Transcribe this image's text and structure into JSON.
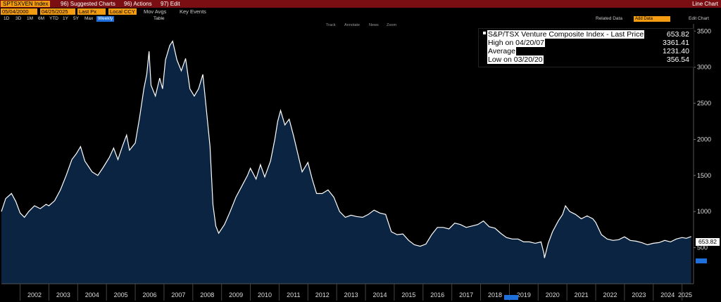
{
  "header": {
    "ticker": "SPTSXVEN Index",
    "suggested": "96) Suggested Charts",
    "actions": "96) Actions",
    "edit": "97) Edit",
    "chart_type": "Line Chart"
  },
  "controls": {
    "start_date": "05/04/2000",
    "end_date": "04/25/2025",
    "field": "Last Px",
    "currency": "Local CCY",
    "mov_avgs": "Mov Avgs",
    "key_events": "Key Events"
  },
  "ranges": [
    "1D",
    "3D",
    "1M",
    "6M",
    "YTD",
    "1Y",
    "5Y",
    "Max"
  ],
  "period": "Weekly",
  "table_label": "Table",
  "right_tools": {
    "related": "Related Data",
    "add": "Add Data",
    "edit_chart": "Edit Chart"
  },
  "chart_tools": [
    "Track",
    "Annotate",
    "News",
    "Zoom"
  ],
  "legend": {
    "title": "S&P/TSX Venture Composite Index - Last Price",
    "title_value": "653.82",
    "high_label": "High on 04/20/07",
    "high_value": "3361.41",
    "avg_label": "Average",
    "avg_value": "1231.40",
    "low_label": "Low on 03/20/20",
    "low_value": "356.54"
  },
  "last_price_tag": "653.82",
  "chart_data": {
    "type": "area",
    "title": "S&P/TSX Venture Composite Index - Last Price",
    "x_ticks": [
      "2002",
      "2003",
      "2004",
      "2005",
      "2006",
      "2007",
      "2008",
      "2009",
      "2010",
      "2011",
      "2012",
      "2013",
      "2014",
      "2015",
      "2016",
      "2017",
      "2018",
      "2019",
      "2020",
      "2021",
      "2022",
      "2023",
      "2024",
      "2025"
    ],
    "y_ticks": [
      500,
      1000,
      1500,
      2000,
      2500,
      3000,
      3500
    ],
    "ylim": [
      0,
      3600
    ],
    "xlim": [
      2001.35,
      2025.4
    ],
    "colors": {
      "line": "#ffffff",
      "fill": "#0b2442"
    },
    "points": [
      [
        2001.35,
        1000
      ],
      [
        2001.5,
        1180
      ],
      [
        2001.7,
        1250
      ],
      [
        2001.85,
        1140
      ],
      [
        2002.0,
        980
      ],
      [
        2002.15,
        920
      ],
      [
        2002.3,
        1000
      ],
      [
        2002.5,
        1080
      ],
      [
        2002.7,
        1040
      ],
      [
        2002.9,
        1100
      ],
      [
        2003.0,
        1080
      ],
      [
        2003.2,
        1150
      ],
      [
        2003.4,
        1300
      ],
      [
        2003.6,
        1500
      ],
      [
        2003.8,
        1720
      ],
      [
        2003.95,
        1800
      ],
      [
        2004.1,
        1900
      ],
      [
        2004.25,
        1700
      ],
      [
        2004.5,
        1550
      ],
      [
        2004.7,
        1500
      ],
      [
        2004.9,
        1620
      ],
      [
        2005.1,
        1750
      ],
      [
        2005.25,
        1880
      ],
      [
        2005.4,
        1720
      ],
      [
        2005.55,
        1900
      ],
      [
        2005.7,
        2060
      ],
      [
        2005.8,
        1850
      ],
      [
        2006.0,
        1950
      ],
      [
        2006.15,
        2300
      ],
      [
        2006.3,
        2700
      ],
      [
        2006.4,
        2900
      ],
      [
        2006.48,
        3220
      ],
      [
        2006.55,
        2750
      ],
      [
        2006.7,
        2600
      ],
      [
        2006.85,
        2850
      ],
      [
        2006.95,
        2700
      ],
      [
        2007.05,
        3100
      ],
      [
        2007.2,
        3300
      ],
      [
        2007.3,
        3361
      ],
      [
        2007.45,
        3100
      ],
      [
        2007.6,
        2950
      ],
      [
        2007.75,
        3120
      ],
      [
        2007.9,
        2700
      ],
      [
        2008.05,
        2600
      ],
      [
        2008.2,
        2700
      ],
      [
        2008.35,
        2900
      ],
      [
        2008.45,
        2500
      ],
      [
        2008.6,
        1900
      ],
      [
        2008.7,
        1100
      ],
      [
        2008.8,
        800
      ],
      [
        2008.9,
        700
      ],
      [
        2009.1,
        820
      ],
      [
        2009.3,
        1000
      ],
      [
        2009.5,
        1200
      ],
      [
        2009.7,
        1350
      ],
      [
        2009.9,
        1500
      ],
      [
        2010.0,
        1600
      ],
      [
        2010.2,
        1450
      ],
      [
        2010.35,
        1650
      ],
      [
        2010.5,
        1480
      ],
      [
        2010.7,
        1700
      ],
      [
        2010.85,
        2000
      ],
      [
        2010.95,
        2250
      ],
      [
        2011.05,
        2400
      ],
      [
        2011.2,
        2200
      ],
      [
        2011.35,
        2280
      ],
      [
        2011.5,
        2050
      ],
      [
        2011.65,
        1800
      ],
      [
        2011.8,
        1550
      ],
      [
        2012.0,
        1680
      ],
      [
        2012.15,
        1450
      ],
      [
        2012.3,
        1250
      ],
      [
        2012.5,
        1250
      ],
      [
        2012.7,
        1300
      ],
      [
        2012.9,
        1200
      ],
      [
        2013.1,
        1000
      ],
      [
        2013.3,
        920
      ],
      [
        2013.5,
        950
      ],
      [
        2013.7,
        930
      ],
      [
        2013.9,
        920
      ],
      [
        2014.1,
        960
      ],
      [
        2014.3,
        1020
      ],
      [
        2014.5,
        980
      ],
      [
        2014.7,
        960
      ],
      [
        2014.9,
        720
      ],
      [
        2015.1,
        680
      ],
      [
        2015.3,
        690
      ],
      [
        2015.5,
        600
      ],
      [
        2015.7,
        540
      ],
      [
        2015.9,
        520
      ],
      [
        2016.1,
        550
      ],
      [
        2016.3,
        680
      ],
      [
        2016.5,
        780
      ],
      [
        2016.7,
        780
      ],
      [
        2016.9,
        760
      ],
      [
        2017.1,
        840
      ],
      [
        2017.3,
        820
      ],
      [
        2017.5,
        780
      ],
      [
        2017.7,
        800
      ],
      [
        2017.9,
        820
      ],
      [
        2018.1,
        870
      ],
      [
        2018.3,
        790
      ],
      [
        2018.5,
        770
      ],
      [
        2018.7,
        700
      ],
      [
        2018.9,
        640
      ],
      [
        2019.1,
        620
      ],
      [
        2019.3,
        620
      ],
      [
        2019.5,
        580
      ],
      [
        2019.7,
        580
      ],
      [
        2019.9,
        560
      ],
      [
        2020.1,
        580
      ],
      [
        2020.2,
        420
      ],
      [
        2020.22,
        357
      ],
      [
        2020.35,
        560
      ],
      [
        2020.5,
        720
      ],
      [
        2020.7,
        870
      ],
      [
        2020.85,
        960
      ],
      [
        2020.95,
        1080
      ],
      [
        2021.1,
        1000
      ],
      [
        2021.3,
        960
      ],
      [
        2021.5,
        900
      ],
      [
        2021.7,
        940
      ],
      [
        2021.9,
        900
      ],
      [
        2022.0,
        850
      ],
      [
        2022.2,
        680
      ],
      [
        2022.4,
        620
      ],
      [
        2022.6,
        600
      ],
      [
        2022.8,
        610
      ],
      [
        2023.0,
        650
      ],
      [
        2023.2,
        600
      ],
      [
        2023.4,
        590
      ],
      [
        2023.6,
        570
      ],
      [
        2023.8,
        540
      ],
      [
        2024.0,
        560
      ],
      [
        2024.2,
        570
      ],
      [
        2024.4,
        600
      ],
      [
        2024.6,
        580
      ],
      [
        2024.8,
        620
      ],
      [
        2025.0,
        640
      ],
      [
        2025.15,
        630
      ],
      [
        2025.32,
        654
      ]
    ]
  }
}
